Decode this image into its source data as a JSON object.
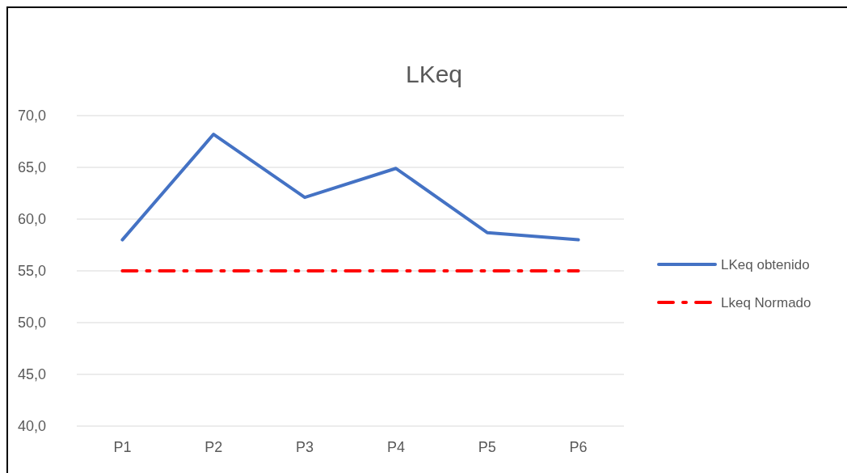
{
  "chart_data": {
    "type": "line",
    "title": "LKeq",
    "categories": [
      "P1",
      "P2",
      "P3",
      "P4",
      "P5",
      "P6"
    ],
    "series": [
      {
        "name": "LKeq obtenido",
        "color": "#4472c4",
        "values": [
          58.0,
          68.2,
          62.1,
          64.9,
          58.7,
          58.0
        ],
        "line_style": "solid"
      },
      {
        "name": "Lkeq Normado",
        "color": "#ff0000",
        "values": [
          55,
          55,
          55,
          55,
          55,
          55
        ],
        "line_style": "dashed"
      }
    ],
    "ylim": [
      40,
      70
    ],
    "yticks": [
      {
        "value": 40,
        "label": "40,0"
      },
      {
        "value": 45,
        "label": "45,0"
      },
      {
        "value": 50,
        "label": "50,0"
      },
      {
        "value": 55,
        "label": "55,0"
      },
      {
        "value": 60,
        "label": "60,0"
      },
      {
        "value": 65,
        "label": "65,0"
      },
      {
        "value": 70,
        "label": "70,0"
      }
    ],
    "grid": "y",
    "legend": "right"
  }
}
